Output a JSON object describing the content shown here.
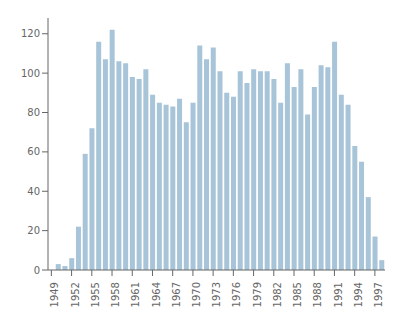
{
  "chart_data": {
    "type": "bar",
    "x": [
      1949,
      1950,
      1951,
      1952,
      1953,
      1954,
      1955,
      1956,
      1957,
      1958,
      1959,
      1960,
      1961,
      1962,
      1963,
      1964,
      1965,
      1966,
      1967,
      1968,
      1969,
      1970,
      1971,
      1972,
      1973,
      1974,
      1975,
      1976,
      1977,
      1978,
      1979,
      1980,
      1981,
      1982,
      1983,
      1984,
      1985,
      1986,
      1987,
      1988,
      1989,
      1990,
      1991,
      1992,
      1993,
      1994,
      1995,
      1996,
      1997,
      1998
    ],
    "values": [
      0,
      3,
      2,
      6,
      22,
      59,
      72,
      116,
      107,
      122,
      106,
      105,
      98,
      97,
      102,
      89,
      85,
      84,
      83,
      87,
      75,
      85,
      114,
      107,
      113,
      101,
      90,
      88,
      101,
      95,
      102,
      101,
      101,
      97,
      85,
      105,
      93,
      102,
      79,
      93,
      104,
      103,
      116,
      89,
      84,
      63,
      55,
      37,
      17,
      5
    ],
    "color": "#a8c4d8",
    "xlim": [
      1948.5,
      1998.5
    ],
    "xticks": [
      1949,
      1952,
      1955,
      1958,
      1961,
      1964,
      1967,
      1970,
      1973,
      1976,
      1979,
      1982,
      1985,
      1988,
      1991,
      1994,
      1997
    ],
    "ylim": [
      0,
      128
    ],
    "yticks": [
      0,
      20,
      40,
      60,
      80,
      100,
      120
    ],
    "grid": false
  }
}
